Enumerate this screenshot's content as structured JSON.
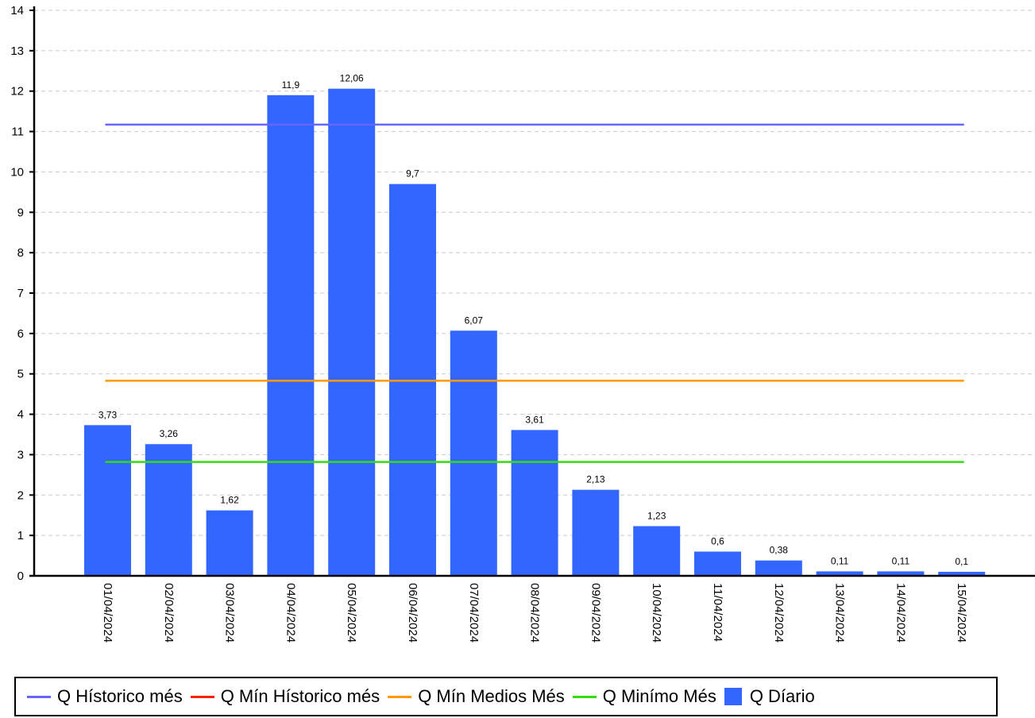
{
  "chart_data": {
    "type": "bar",
    "categories": [
      "01/04/2024",
      "02/04/2024",
      "03/04/2024",
      "04/04/2024",
      "05/04/2024",
      "06/04/2024",
      "07/04/2024",
      "08/04/2024",
      "09/04/2024",
      "10/04/2024",
      "11/04/2024",
      "12/04/2024",
      "13/04/2024",
      "14/04/2024",
      "15/04/2024"
    ],
    "bar_series": {
      "name": "Q Díario",
      "color": "#3366ff",
      "values": [
        3.73,
        3.26,
        1.62,
        11.9,
        12.06,
        9.7,
        6.07,
        3.61,
        2.13,
        1.23,
        0.6,
        0.38,
        0.11,
        0.11,
        0.1
      ],
      "labels": [
        "3,73",
        "3,26",
        "1,62",
        "11,9",
        "12,06",
        "9,7",
        "6,07",
        "3,61",
        "2,13",
        "1,23",
        "0,6",
        "0,38",
        "0,11",
        "0,11",
        "0,1"
      ]
    },
    "line_series": [
      {
        "name": "Q Hístorico més",
        "color": "#6666ff",
        "value": 11.17
      },
      {
        "name": "Q Mín Hístorico més",
        "color": "#ff2200",
        "value": null
      },
      {
        "name": "Q Mín Medios Més",
        "color": "#ff9900",
        "value": 4.83
      },
      {
        "name": "Q Minímo Més",
        "color": "#33dd11",
        "value": 2.82
      }
    ],
    "ylim": [
      0,
      14
    ],
    "yticks": [
      0,
      1,
      2,
      3,
      4,
      5,
      6,
      7,
      8,
      9,
      10,
      11,
      12,
      13,
      14
    ],
    "grid": true,
    "legend_position": "bottom"
  }
}
